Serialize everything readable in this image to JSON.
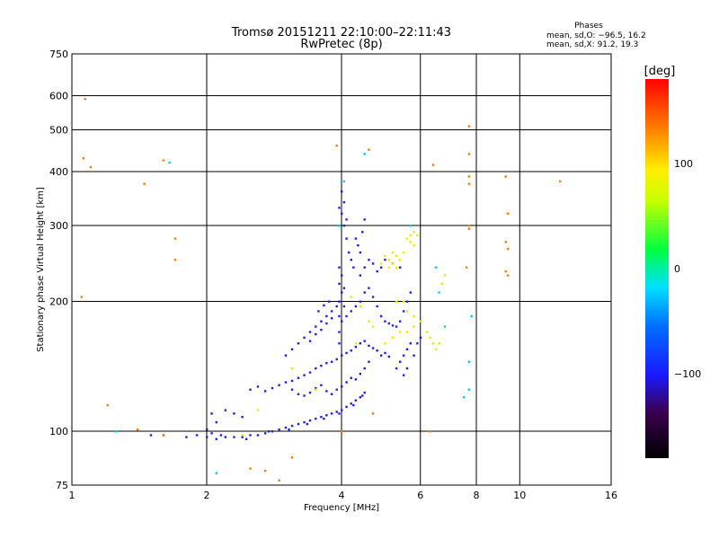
{
  "chart_data": {
    "type": "scatter",
    "title": "Tromsø 20151211 22:10:00–22:11:43",
    "subtitle": "RwPretec (8p)",
    "xlabel": "Frequency [MHz]",
    "ylabel": "Stationary phase Virtual Height [km]",
    "x_scale": "log",
    "y_scale": "log",
    "xlim": [
      1,
      16
    ],
    "ylim": [
      75,
      750
    ],
    "x_ticks": [
      1,
      2,
      4,
      6,
      8,
      10,
      16
    ],
    "x_tick_labels": [
      "1",
      "2",
      "4",
      "6",
      "8",
      "10",
      "16"
    ],
    "y_ticks": [
      75,
      100,
      200,
      300,
      400,
      500,
      600,
      750
    ],
    "y_tick_labels": [
      "75",
      "100",
      "200",
      "300",
      "400",
      "500",
      "600",
      "750"
    ],
    "grid": true,
    "phase_stats": {
      "heading": "Phases",
      "line_o": "mean, sd,O: −96.5, 16.2",
      "line_x": "mean, sd,X:  91.2, 19.3"
    },
    "colorbar": {
      "label": "[deg]",
      "ticks": [
        100,
        0,
        -100
      ],
      "tick_labels": [
        "100",
        "0",
        "−100"
      ],
      "range": [
        -180,
        180
      ]
    },
    "series": [
      {
        "points": [
          [
            2.0,
            97
          ],
          [
            2.1,
            96
          ],
          [
            2.2,
            97
          ],
          [
            2.3,
            97
          ],
          [
            2.4,
            97
          ],
          [
            2.5,
            98
          ],
          [
            2.6,
            98
          ],
          [
            2.7,
            99
          ],
          [
            2.8,
            100
          ],
          [
            2.9,
            101
          ],
          [
            3.0,
            102
          ],
          [
            3.1,
            103
          ],
          [
            3.2,
            104
          ],
          [
            3.3,
            105
          ],
          [
            3.4,
            106
          ],
          [
            3.5,
            107
          ],
          [
            3.6,
            108
          ],
          [
            3.7,
            109
          ],
          [
            3.8,
            110
          ],
          [
            3.9,
            111
          ],
          [
            4.0,
            112
          ],
          [
            4.1,
            114
          ],
          [
            4.2,
            116
          ],
          [
            4.3,
            118
          ],
          [
            4.4,
            120
          ],
          [
            4.5,
            123
          ],
          [
            2.05,
            99
          ],
          [
            2.15,
            98
          ],
          [
            2.45,
            96
          ],
          [
            2.75,
            100
          ],
          [
            3.05,
            101
          ],
          [
            3.35,
            104
          ],
          [
            3.65,
            107
          ],
          [
            3.95,
            110
          ],
          [
            4.25,
            115
          ],
          [
            4.45,
            121
          ],
          [
            2.5,
            125
          ],
          [
            2.6,
            127
          ],
          [
            2.7,
            124
          ],
          [
            2.8,
            126
          ],
          [
            2.9,
            128
          ],
          [
            3.0,
            130
          ],
          [
            3.1,
            131
          ],
          [
            3.2,
            133
          ],
          [
            3.3,
            135
          ],
          [
            3.4,
            137
          ],
          [
            3.5,
            140
          ],
          [
            3.6,
            142
          ],
          [
            3.7,
            144
          ],
          [
            3.8,
            145
          ],
          [
            3.9,
            147
          ],
          [
            4.0,
            150
          ],
          [
            4.1,
            152
          ],
          [
            4.2,
            154
          ],
          [
            4.3,
            157
          ],
          [
            4.4,
            160
          ],
          [
            4.5,
            162
          ],
          [
            4.6,
            158
          ],
          [
            4.7,
            156
          ],
          [
            4.8,
            154
          ],
          [
            4.9,
            150
          ],
          [
            5.0,
            152
          ],
          [
            5.1,
            149
          ],
          [
            3.1,
            125
          ],
          [
            3.2,
            122
          ],
          [
            3.3,
            121
          ],
          [
            3.4,
            123
          ],
          [
            3.5,
            126
          ],
          [
            3.6,
            128
          ],
          [
            3.7,
            124
          ],
          [
            3.8,
            122
          ],
          [
            3.9,
            125
          ],
          [
            4.0,
            127
          ],
          [
            4.1,
            130
          ],
          [
            4.2,
            133
          ],
          [
            4.3,
            132
          ],
          [
            4.4,
            136
          ],
          [
            4.5,
            140
          ],
          [
            4.6,
            145
          ],
          [
            3.0,
            150
          ],
          [
            3.1,
            155
          ],
          [
            3.2,
            160
          ],
          [
            3.3,
            165
          ],
          [
            3.4,
            170
          ],
          [
            3.5,
            175
          ],
          [
            3.6,
            180
          ],
          [
            3.7,
            185
          ],
          [
            3.8,
            190
          ],
          [
            3.9,
            195
          ],
          [
            3.4,
            162
          ],
          [
            3.5,
            168
          ],
          [
            3.6,
            172
          ],
          [
            3.7,
            178
          ],
          [
            3.8,
            183
          ],
          [
            3.55,
            190
          ],
          [
            3.65,
            196
          ],
          [
            3.75,
            200
          ],
          [
            4.0,
            180
          ],
          [
            4.1,
            185
          ],
          [
            4.2,
            190
          ],
          [
            4.3,
            195
          ],
          [
            4.4,
            200
          ],
          [
            4.5,
            210
          ],
          [
            4.6,
            215
          ],
          [
            4.7,
            205
          ],
          [
            4.8,
            195
          ],
          [
            4.9,
            185
          ],
          [
            5.0,
            180
          ],
          [
            5.1,
            178
          ],
          [
            5.2,
            176
          ],
          [
            5.3,
            175
          ],
          [
            5.4,
            180
          ],
          [
            5.5,
            190
          ],
          [
            5.6,
            200
          ],
          [
            5.7,
            210
          ],
          [
            4.0,
            320
          ],
          [
            4.05,
            300
          ],
          [
            4.1,
            280
          ],
          [
            4.15,
            260
          ],
          [
            4.2,
            250
          ],
          [
            4.25,
            240
          ],
          [
            4.0,
            360
          ],
          [
            4.05,
            340
          ],
          [
            3.95,
            330
          ],
          [
            4.1,
            310
          ],
          [
            4.3,
            280
          ],
          [
            4.35,
            270
          ],
          [
            4.4,
            260
          ],
          [
            4.45,
            290
          ],
          [
            4.5,
            310
          ],
          [
            4.4,
            230
          ],
          [
            4.5,
            240
          ],
          [
            4.6,
            250
          ],
          [
            4.7,
            245
          ],
          [
            4.8,
            235
          ],
          [
            4.9,
            240
          ],
          [
            5.0,
            250
          ],
          [
            5.2,
            245
          ],
          [
            5.4,
            240
          ],
          [
            3.95,
            240
          ],
          [
            3.95,
            220
          ],
          [
            3.95,
            200
          ],
          [
            3.95,
            185
          ],
          [
            3.95,
            170
          ],
          [
            3.95,
            160
          ],
          [
            4.0,
            210
          ],
          [
            4.0,
            230
          ],
          [
            4.05,
            215
          ],
          [
            4.05,
            195
          ],
          [
            5.3,
            140
          ],
          [
            5.4,
            145
          ],
          [
            5.5,
            150
          ],
          [
            5.6,
            155
          ],
          [
            5.7,
            160
          ],
          [
            5.5,
            135
          ],
          [
            5.6,
            140
          ],
          [
            5.8,
            150
          ],
          [
            5.9,
            160
          ],
          [
            6.0,
            165
          ],
          [
            2.2,
            112
          ],
          [
            2.3,
            110
          ],
          [
            2.4,
            108
          ],
          [
            2.05,
            110
          ],
          [
            2.1,
            105
          ],
          [
            2.0,
            101
          ],
          [
            1.9,
            98
          ],
          [
            1.8,
            97
          ],
          [
            1.6,
            98
          ],
          [
            1.5,
            98
          ]
        ]
      },
      {
        "points": [
          [
            5.0,
            255
          ],
          [
            5.1,
            250
          ],
          [
            5.2,
            245
          ],
          [
            5.3,
            240
          ],
          [
            5.4,
            250
          ],
          [
            5.5,
            260
          ],
          [
            5.6,
            280
          ],
          [
            5.7,
            285
          ],
          [
            5.8,
            290
          ],
          [
            5.9,
            285
          ],
          [
            5.7,
            275
          ],
          [
            5.8,
            270
          ],
          [
            5.2,
            260
          ],
          [
            5.3,
            255
          ],
          [
            5.1,
            240
          ],
          [
            4.9,
            245
          ],
          [
            5.0,
            160
          ],
          [
            5.2,
            165
          ],
          [
            5.4,
            170
          ],
          [
            5.6,
            170
          ],
          [
            5.8,
            175
          ],
          [
            6.3,
            165
          ],
          [
            6.4,
            160
          ],
          [
            6.5,
            155
          ],
          [
            6.6,
            160
          ],
          [
            6.2,
            170
          ],
          [
            5.5,
            200
          ],
          [
            5.6,
            190
          ],
          [
            5.8,
            185
          ],
          [
            6.0,
            180
          ],
          [
            4.6,
            180
          ],
          [
            4.7,
            175
          ],
          [
            4.2,
            205
          ],
          [
            4.4,
            195
          ],
          [
            3.5,
            125
          ],
          [
            3.1,
            140
          ],
          [
            2.6,
            112
          ],
          [
            2.4,
            98
          ],
          [
            4.3,
            160
          ],
          [
            5.3,
            200
          ],
          [
            6.7,
            220
          ],
          [
            6.8,
            230
          ]
        ]
      },
      {
        "points": [
          [
            1.07,
            590
          ],
          [
            1.06,
            430
          ],
          [
            1.1,
            410
          ],
          [
            1.45,
            375
          ],
          [
            1.6,
            425
          ],
          [
            1.7,
            280
          ],
          [
            1.7,
            250
          ],
          [
            1.05,
            205
          ],
          [
            1.2,
            115
          ],
          [
            1.4,
            101
          ],
          [
            3.9,
            460
          ],
          [
            4.6,
            450
          ],
          [
            6.4,
            415
          ],
          [
            7.7,
            510
          ],
          [
            7.7,
            440
          ],
          [
            7.7,
            390
          ],
          [
            7.7,
            375
          ],
          [
            7.7,
            300
          ],
          [
            7.7,
            295
          ],
          [
            7.6,
            240
          ],
          [
            9.3,
            390
          ],
          [
            9.4,
            320
          ],
          [
            9.3,
            275
          ],
          [
            9.4,
            265
          ],
          [
            9.3,
            235
          ],
          [
            9.4,
            230
          ],
          [
            12.3,
            380
          ],
          [
            1.6,
            98
          ],
          [
            6.3,
            100
          ],
          [
            4.0,
            100
          ],
          [
            2.5,
            82
          ],
          [
            2.9,
            77
          ],
          [
            2.7,
            81
          ],
          [
            4.7,
            110
          ],
          [
            3.1,
            87
          ]
        ]
      },
      {
        "points": [
          [
            4.5,
            440
          ],
          [
            4.05,
            380
          ],
          [
            3.95,
            300
          ],
          [
            5.7,
            300
          ],
          [
            7.8,
            185
          ],
          [
            7.7,
            145
          ],
          [
            7.7,
            125
          ],
          [
            7.5,
            120
          ],
          [
            6.8,
            175
          ],
          [
            2.1,
            80
          ],
          [
            1.65,
            420
          ],
          [
            1.25,
            100
          ],
          [
            6.5,
            240
          ],
          [
            6.6,
            210
          ]
        ]
      }
    ]
  }
}
